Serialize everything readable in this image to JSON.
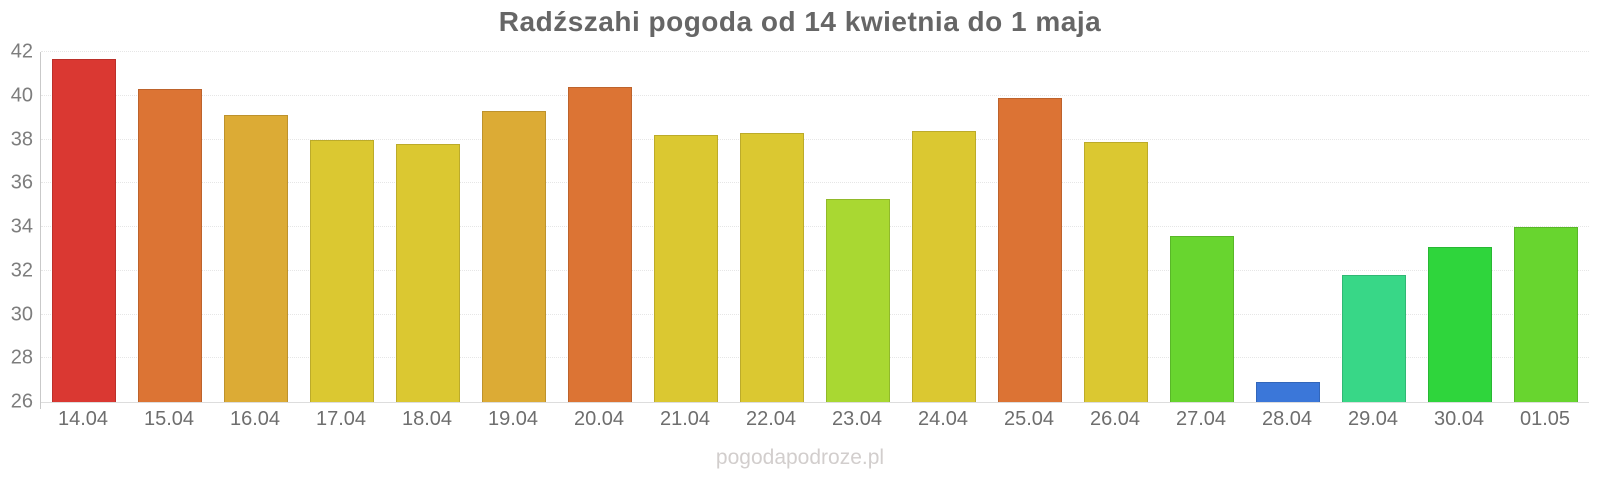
{
  "page": {
    "title": "Radźszahi pogoda od 14 kwietnia do 1 maja",
    "watermark": "pogodapodroze.pl"
  },
  "chart_data": {
    "type": "bar",
    "title": "Radźszahi pogoda od 14 kwietnia do 1 maja",
    "xlabel": "",
    "ylabel": "",
    "ylim": [
      26,
      42
    ],
    "yticks": [
      26,
      28,
      30,
      32,
      34,
      36,
      38,
      40,
      42
    ],
    "grid": true,
    "legend": "none",
    "categories": [
      "14.04",
      "15.04",
      "16.04",
      "17.04",
      "18.04",
      "19.04",
      "20.04",
      "21.04",
      "22.04",
      "23.04",
      "24.04",
      "25.04",
      "26.04",
      "27.04",
      "28.04",
      "29.04",
      "30.04",
      "01.05"
    ],
    "values": [
      41.7,
      40.3,
      39.1,
      38.0,
      37.8,
      39.3,
      40.4,
      38.2,
      38.3,
      35.3,
      38.4,
      39.9,
      37.9,
      33.6,
      26.9,
      31.8,
      33.1,
      34.0
    ],
    "bar_colors": [
      "#da3832",
      "#dc7434",
      "#dcab35",
      "#dbc831",
      "#dbc831",
      "#dcab35",
      "#dc7434",
      "#dbc831",
      "#dbc831",
      "#a9d832",
      "#dbc831",
      "#dc7334",
      "#dbc831",
      "#68d52f",
      "#3b77d9",
      "#38d787",
      "#2fd53c",
      "#68d52f"
    ]
  },
  "colors": {
    "background": "#ffffff",
    "title_text": "#666666",
    "y_label_text": "#7d7d7d",
    "x_label_text": "#6e6e6e",
    "gridline": "#e6e6e6",
    "y_axis_line": "#c9c9c9",
    "baseline": "#dddddd",
    "watermark_text": "#d2cecd"
  }
}
